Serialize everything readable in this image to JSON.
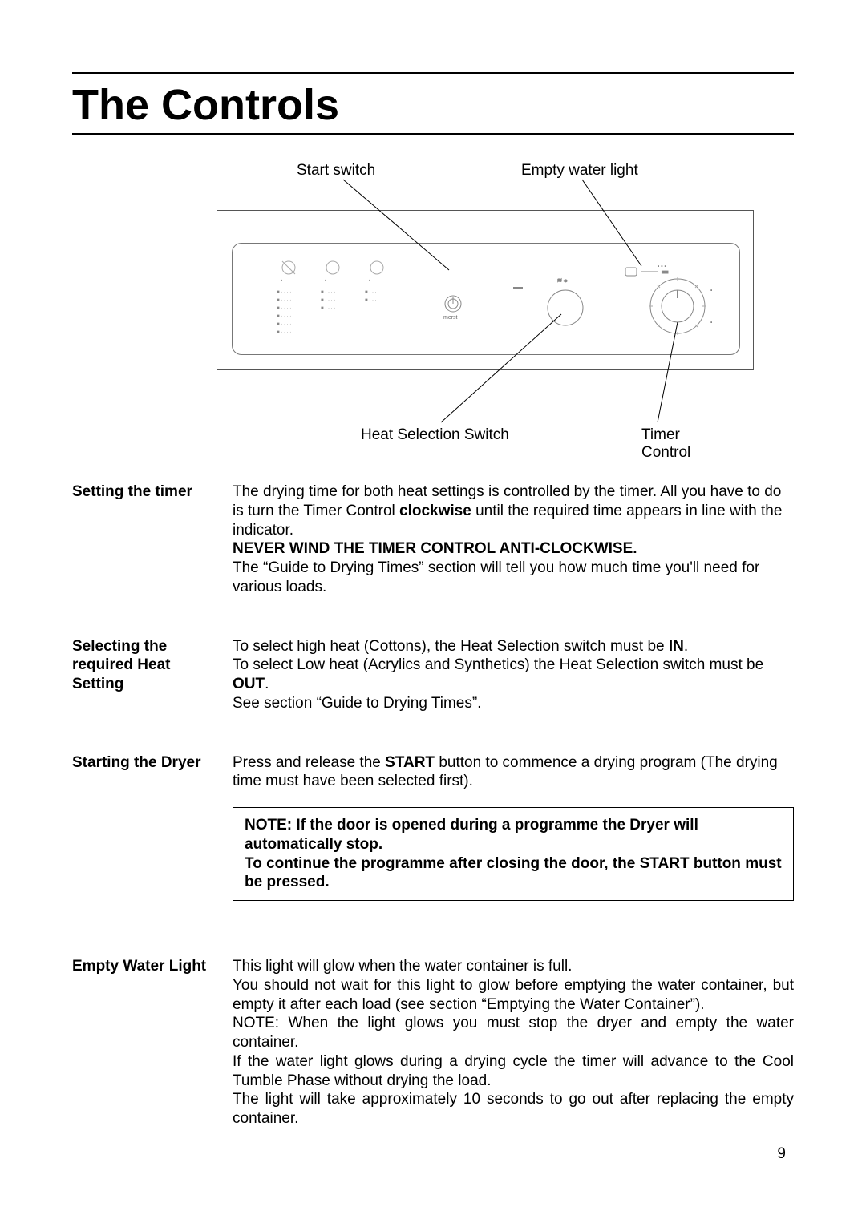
{
  "page": {
    "title": "The Controls",
    "number": "9"
  },
  "diagram": {
    "callouts": {
      "start_switch": "Start switch",
      "empty_water_light": "Empty water light",
      "heat_selection_switch": "Heat Selection Switch",
      "timer_control_line1": "Timer",
      "timer_control_line2": "Control"
    },
    "font_size": 19,
    "line_color": "#000000"
  },
  "sections": [
    {
      "label": "Setting the timer",
      "body_html": "The drying time for both heat settings is controlled by the timer. All you have to do is turn the Timer Control <b>clockwise</b> until the required time appears in line with the indicator.<br><b>NEVER WIND THE TIMER CONTROL ANTI-CLOCKWISE.</b><br> The “Guide to Drying Times” section will tell you how much time you'll need for various loads."
    },
    {
      "label": "Selecting the required Heat Setting",
      "body_html": "To select high heat (Cottons), the Heat Selection switch must be <b>IN</b>.<br>To select Low heat (Acrylics and Synthetics) the Heat Selection switch must be <b>OUT</b>.<br>See section “Guide to Drying Times”."
    },
    {
      "label": "Starting the Dryer",
      "body_html": "Press and release the <b>START</b> button to commence a drying program (The drying time must have been selected first).",
      "note_html": "NOTE: If the door is opened during a programme the Dryer will automatically stop.<br>To continue the programme after closing the door, the START button must be pressed."
    },
    {
      "label": "Empty Water Light",
      "justify": true,
      "body_html": "This light will glow when the water container is full.<br>You should not wait for this light to glow before emptying the water container, but empty it after each load (see section “Emptying the Water Container”).<br>NOTE: When the light glows you must stop the dryer and empty the water container.<br>If the water light glows during a drying cycle the timer will advance to the Cool Tumble Phase without drying the load.<br>The light will take approximately 10 seconds to go out after replacing the empty container."
    }
  ],
  "style": {
    "body_font_size": 19,
    "title_font_size": 54,
    "text_color": "#000000",
    "background_color": "#ffffff",
    "rule_color": "#000000"
  }
}
